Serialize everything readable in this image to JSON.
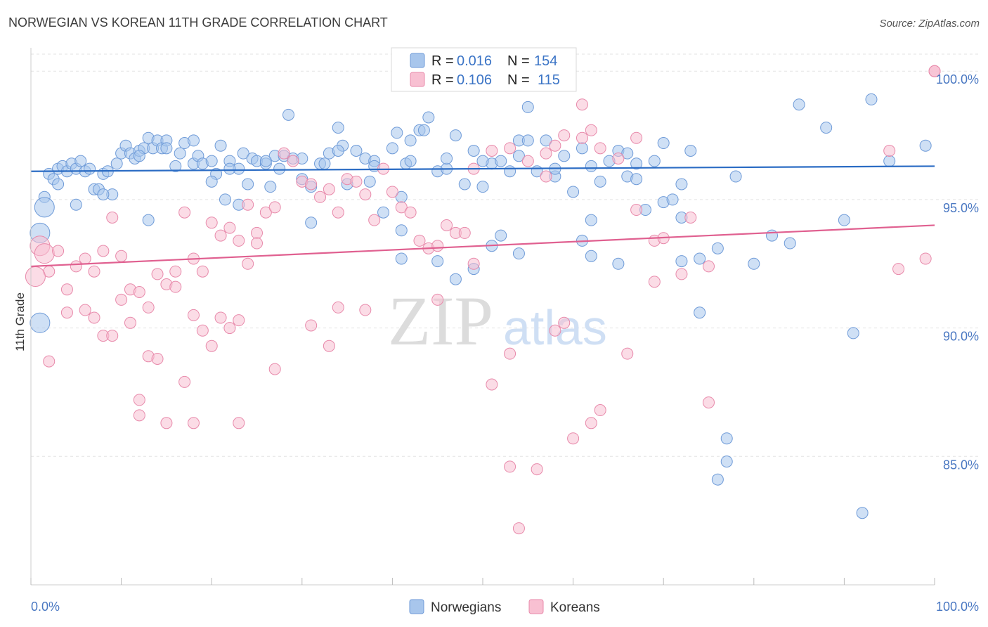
{
  "chart_data": {
    "type": "scatter",
    "title": "NORWEGIAN VS KOREAN 11TH GRADE CORRELATION CHART",
    "source": "Source: ZipAtlas.com",
    "ylabel": "11th Grade",
    "xlabel": "",
    "xlim": [
      0,
      100
    ],
    "ylim": [
      80.0,
      100.8
    ],
    "x_tick_labels": [
      "0.0%",
      "100.0%"
    ],
    "y_ticks": [
      85,
      90,
      95,
      100
    ],
    "y_tick_labels": [
      "85.0%",
      "90.0%",
      "95.0%",
      "100.0%"
    ],
    "grid": true,
    "legend_position": "top-center",
    "watermark": {
      "zip": "ZIP",
      "atlas": "atlas"
    },
    "stats": [
      {
        "r_label": "R =",
        "r_value": "0.016",
        "n_label": "N =",
        "n_value": "154"
      },
      {
        "r_label": "R =",
        "r_value": "0.106",
        "n_label": "N =",
        "n_value": "115"
      }
    ],
    "series": [
      {
        "name": "Norwegians",
        "color": "#a8c6ec",
        "stroke": "#6f9bd8",
        "line_color": "#2b6cc4",
        "trend": {
          "x": [
            0,
            100
          ],
          "y": [
            96.1,
            96.3
          ]
        },
        "points": [
          [
            2,
            96
          ],
          [
            2.5,
            95.8
          ],
          [
            3,
            96.2
          ],
          [
            3.5,
            96.3
          ],
          [
            4,
            96.1
          ],
          [
            4.5,
            96.4
          ],
          [
            5,
            96.2
          ],
          [
            5.5,
            96.5
          ],
          [
            6,
            96.1
          ],
          [
            6.5,
            96.2
          ],
          [
            7,
            95.4
          ],
          [
            7.5,
            95.4
          ],
          [
            8,
            96
          ],
          [
            8.5,
            96.1
          ],
          [
            9,
            95.2
          ],
          [
            9.5,
            96.4
          ],
          [
            10,
            96.8
          ],
          [
            10.5,
            97.1
          ],
          [
            11,
            96.8
          ],
          [
            11.5,
            96.6
          ],
          [
            12,
            96.9
          ],
          [
            12.5,
            97
          ],
          [
            13,
            97.4
          ],
          [
            13.5,
            97
          ],
          [
            14,
            97.3
          ],
          [
            14.5,
            97
          ],
          [
            15,
            97.3
          ],
          [
            16,
            96.3
          ],
          [
            16.5,
            96.8
          ],
          [
            17,
            97.2
          ],
          [
            18,
            96.4
          ],
          [
            18.5,
            96.7
          ],
          [
            19,
            96.4
          ],
          [
            20,
            96.5
          ],
          [
            20.5,
            96
          ],
          [
            21,
            97.1
          ],
          [
            21.5,
            95
          ],
          [
            22,
            96.5
          ],
          [
            23,
            96.2
          ],
          [
            23.5,
            96.8
          ],
          [
            24,
            95.6
          ],
          [
            24.5,
            96.6
          ],
          [
            25,
            96.5
          ],
          [
            26,
            96.4
          ],
          [
            26.5,
            95.5
          ],
          [
            27,
            96.7
          ],
          [
            27.5,
            96.2
          ],
          [
            28,
            96.7
          ],
          [
            28.5,
            98.3
          ],
          [
            29,
            96.6
          ],
          [
            30,
            95.8
          ],
          [
            31,
            95.5
          ],
          [
            32,
            96.4
          ],
          [
            32.5,
            96.4
          ],
          [
            33,
            96.8
          ],
          [
            34,
            97.8
          ],
          [
            34.5,
            97.1
          ],
          [
            35,
            95.6
          ],
          [
            36,
            96.9
          ],
          [
            37,
            96.6
          ],
          [
            37.5,
            95.7
          ],
          [
            38,
            96.5
          ],
          [
            39,
            94.5
          ],
          [
            40,
            97
          ],
          [
            40.5,
            97.6
          ],
          [
            41,
            95.1
          ],
          [
            41.5,
            96.4
          ],
          [
            42,
            97.3
          ],
          [
            43,
            97.7
          ],
          [
            43.5,
            97.7
          ],
          [
            44,
            98.2
          ],
          [
            45,
            96.1
          ],
          [
            46,
            96.2
          ],
          [
            47,
            97.5
          ],
          [
            48,
            95.6
          ],
          [
            49,
            96.9
          ],
          [
            50,
            95.5
          ],
          [
            51,
            96.4
          ],
          [
            52,
            96.5
          ],
          [
            53,
            96.1
          ],
          [
            54,
            97.3
          ],
          [
            55,
            97.3
          ],
          [
            56,
            96.1
          ],
          [
            57,
            97.3
          ],
          [
            58,
            95.9
          ],
          [
            59,
            96.7
          ],
          [
            60,
            95.3
          ],
          [
            61,
            97
          ],
          [
            62,
            94.2
          ],
          [
            63,
            95.7
          ],
          [
            64,
            96.5
          ],
          [
            65,
            96.9
          ],
          [
            66,
            95.9
          ],
          [
            67,
            95.8
          ],
          [
            68,
            94.6
          ],
          [
            69,
            96.5
          ],
          [
            70,
            94.9
          ],
          [
            71,
            95
          ],
          [
            72,
            95.6
          ],
          [
            73,
            96.9
          ],
          [
            5,
            94.8
          ],
          [
            8,
            95.2
          ],
          [
            3,
            95.6
          ],
          [
            12,
            96.7
          ],
          [
            15,
            97
          ],
          [
            18,
            97.3
          ],
          [
            22,
            96.2
          ],
          [
            26,
            96.5
          ],
          [
            30,
            96.6
          ],
          [
            34,
            96.9
          ],
          [
            38,
            96.3
          ],
          [
            42,
            96.5
          ],
          [
            46,
            96.6
          ],
          [
            50,
            96.5
          ],
          [
            54,
            96.7
          ],
          [
            58,
            96.2
          ],
          [
            62,
            96.3
          ],
          [
            66,
            96.8
          ],
          [
            70,
            97.2
          ],
          [
            20,
            95.7
          ],
          [
            13,
            94.2
          ],
          [
            23,
            94.8
          ],
          [
            31,
            94.1
          ],
          [
            41,
            93.8
          ],
          [
            52,
            93.6
          ],
          [
            61,
            93.4
          ],
          [
            51,
            93.2
          ],
          [
            54,
            92.9
          ],
          [
            62,
            92.8
          ],
          [
            65,
            92.5
          ],
          [
            74,
            92.7
          ],
          [
            76,
            93.1
          ],
          [
            80,
            92.5
          ],
          [
            82,
            93.6
          ],
          [
            84,
            93.3
          ],
          [
            41,
            92.7
          ],
          [
            45,
            92.6
          ],
          [
            47,
            91.9
          ],
          [
            49,
            92.3
          ],
          [
            74,
            90.6
          ],
          [
            67,
            96.4
          ],
          [
            72,
            94.3
          ],
          [
            55,
            98.6
          ],
          [
            85,
            98.7
          ],
          [
            88,
            97.8
          ],
          [
            78,
            95.9
          ],
          [
            90,
            94.2
          ],
          [
            95,
            96.5
          ],
          [
            99,
            97.1
          ],
          [
            93,
            98.9
          ],
          [
            91,
            89.8
          ],
          [
            76,
            84.1
          ],
          [
            77,
            84.8
          ],
          [
            77,
            85.7
          ],
          [
            92,
            82.8
          ],
          [
            1.5,
            95.1
          ],
          [
            1.5,
            94.7
          ],
          [
            1,
            93.7
          ],
          [
            1,
            90.2
          ],
          [
            72,
            92.6
          ]
        ],
        "point_sizes_large": [
          [
            1,
            93.7
          ],
          [
            1,
            90.2
          ],
          [
            1.5,
            94.7
          ]
        ]
      },
      {
        "name": "Koreans",
        "color": "#f8c0d2",
        "stroke": "#e88aab",
        "line_color": "#e06090",
        "trend": {
          "x": [
            0,
            100
          ],
          "y": [
            92.4,
            94.0
          ]
        },
        "points": [
          [
            1,
            93.2
          ],
          [
            1.5,
            92.9
          ],
          [
            2,
            92.2
          ],
          [
            3,
            93
          ],
          [
            4,
            91.5
          ],
          [
            5,
            92.4
          ],
          [
            6,
            92.7
          ],
          [
            7,
            92.2
          ],
          [
            8,
            93
          ],
          [
            9,
            94.3
          ],
          [
            10,
            92.8
          ],
          [
            11,
            91.5
          ],
          [
            12,
            91.4
          ],
          [
            13,
            90.8
          ],
          [
            14,
            92.1
          ],
          [
            15,
            91.7
          ],
          [
            16,
            92.2
          ],
          [
            17,
            94.5
          ],
          [
            18,
            92.7
          ],
          [
            19,
            92.2
          ],
          [
            20,
            94.1
          ],
          [
            21,
            93.6
          ],
          [
            22,
            93.9
          ],
          [
            23,
            93.4
          ],
          [
            24,
            94.8
          ],
          [
            25,
            93.7
          ],
          [
            26,
            94.5
          ],
          [
            27,
            94.7
          ],
          [
            28,
            96.8
          ],
          [
            29,
            96.5
          ],
          [
            30,
            95.7
          ],
          [
            31,
            95.6
          ],
          [
            32,
            95.1
          ],
          [
            33,
            95.4
          ],
          [
            34,
            94.5
          ],
          [
            35,
            95.8
          ],
          [
            36,
            95.7
          ],
          [
            37,
            95.2
          ],
          [
            38,
            94.2
          ],
          [
            39,
            96.2
          ],
          [
            40,
            95.3
          ],
          [
            41,
            94.7
          ],
          [
            42,
            94.5
          ],
          [
            43,
            93.4
          ],
          [
            44,
            93.1
          ],
          [
            45,
            93.2
          ],
          [
            46,
            94.0
          ],
          [
            47,
            93.7
          ],
          [
            48,
            93.7
          ],
          [
            49,
            92.5
          ],
          [
            4,
            90.6
          ],
          [
            6,
            90.7
          ],
          [
            7,
            90.4
          ],
          [
            8,
            89.7
          ],
          [
            9,
            89.7
          ],
          [
            10,
            91.1
          ],
          [
            11,
            90.2
          ],
          [
            13,
            88.9
          ],
          [
            14,
            88.8
          ],
          [
            15,
            86.3
          ],
          [
            16,
            91.6
          ],
          [
            17,
            87.9
          ],
          [
            18,
            90.5
          ],
          [
            19,
            89.9
          ],
          [
            20,
            89.3
          ],
          [
            21,
            90.4
          ],
          [
            22,
            90.0
          ],
          [
            23,
            90.3
          ],
          [
            24,
            92.5
          ],
          [
            25,
            93.3
          ],
          [
            2,
            88.7
          ],
          [
            12,
            87.2
          ],
          [
            12,
            86.6
          ],
          [
            18,
            86.3
          ],
          [
            23,
            86.3
          ],
          [
            27,
            88.4
          ],
          [
            31,
            90.1
          ],
          [
            33,
            89.3
          ],
          [
            34,
            90.8
          ],
          [
            37,
            90.7
          ],
          [
            45,
            91.1
          ],
          [
            51,
            87.8
          ],
          [
            53,
            89.0
          ],
          [
            58,
            89.9
          ],
          [
            59,
            90.2
          ],
          [
            63,
            86.8
          ],
          [
            66,
            89.0
          ],
          [
            69,
            91.8
          ],
          [
            72,
            92.1
          ],
          [
            75,
            92.4
          ],
          [
            49,
            96.2
          ],
          [
            51,
            96.9
          ],
          [
            53,
            97.0
          ],
          [
            55,
            96.5
          ],
          [
            57,
            95.9
          ],
          [
            59,
            97.5
          ],
          [
            61,
            98.7
          ],
          [
            63,
            97.0
          ],
          [
            65,
            96.6
          ],
          [
            67,
            97.4
          ],
          [
            53,
            84.6
          ],
          [
            56,
            84.5
          ],
          [
            60,
            85.7
          ],
          [
            62,
            86.3
          ],
          [
            54,
            82.2
          ],
          [
            75,
            87.1
          ],
          [
            95,
            96.9
          ],
          [
            96,
            92.3
          ],
          [
            99,
            92.7
          ],
          [
            67,
            94.6
          ],
          [
            69,
            93.4
          ],
          [
            70,
            93.5
          ],
          [
            73,
            94.3
          ],
          [
            57,
            96.8
          ],
          [
            58,
            97.1
          ],
          [
            61,
            97.4
          ],
          [
            62,
            97.7
          ],
          [
            100,
            100
          ],
          [
            100,
            100
          ],
          [
            100,
            100
          ],
          [
            0.5,
            92.0
          ]
        ],
        "point_sizes_large": [
          [
            0.5,
            92.0
          ],
          [
            1,
            93.2
          ],
          [
            1.5,
            92.9
          ]
        ]
      }
    ]
  }
}
